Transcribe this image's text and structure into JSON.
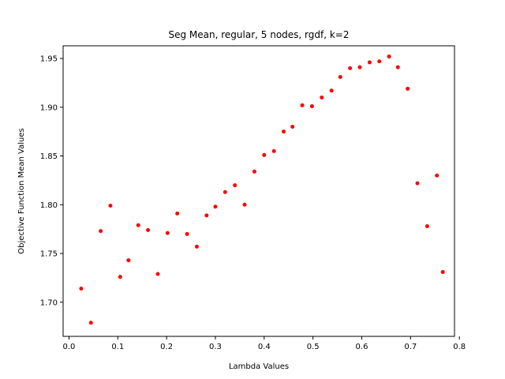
{
  "chart_data": {
    "type": "scatter",
    "title": "Seg Mean, regular, 5 nodes, rgdf, k=2",
    "xlabel": "Lambda Values",
    "ylabel": "Objective Function Mean Values",
    "xlim": [
      -0.012,
      0.79
    ],
    "ylim": [
      1.665,
      1.963
    ],
    "xticks": [
      0.0,
      0.1,
      0.2,
      0.3,
      0.4,
      0.5,
      0.6,
      0.7,
      0.8
    ],
    "xtick_labels": [
      "0.0",
      "0.1",
      "0.2",
      "0.3",
      "0.4",
      "0.5",
      "0.6",
      "0.7",
      "0.8"
    ],
    "yticks": [
      1.7,
      1.75,
      1.8,
      1.85,
      1.9,
      1.95
    ],
    "ytick_labels": [
      "1.70",
      "1.75",
      "1.80",
      "1.85",
      "1.90",
      "1.95"
    ],
    "grid": false,
    "marker_color": "#ff0000",
    "series": [
      {
        "points": [
          [
            0.025,
            1.714
          ],
          [
            0.045,
            1.679
          ],
          [
            0.065,
            1.773
          ],
          [
            0.085,
            1.799
          ],
          [
            0.105,
            1.726
          ],
          [
            0.122,
            1.743
          ],
          [
            0.142,
            1.779
          ],
          [
            0.162,
            1.774
          ],
          [
            0.182,
            1.729
          ],
          [
            0.202,
            1.771
          ],
          [
            0.222,
            1.791
          ],
          [
            0.242,
            1.77
          ],
          [
            0.262,
            1.757
          ],
          [
            0.282,
            1.789
          ],
          [
            0.3,
            1.798
          ],
          [
            0.32,
            1.813
          ],
          [
            0.34,
            1.82
          ],
          [
            0.36,
            1.8
          ],
          [
            0.38,
            1.834
          ],
          [
            0.4,
            1.851
          ],
          [
            0.42,
            1.855
          ],
          [
            0.44,
            1.875
          ],
          [
            0.458,
            1.88
          ],
          [
            0.478,
            1.902
          ],
          [
            0.498,
            1.901
          ],
          [
            0.518,
            1.91
          ],
          [
            0.538,
            1.917
          ],
          [
            0.556,
            1.931
          ],
          [
            0.576,
            1.94
          ],
          [
            0.596,
            1.941
          ],
          [
            0.616,
            1.946
          ],
          [
            0.636,
            1.947
          ],
          [
            0.656,
            1.952
          ],
          [
            0.674,
            1.941
          ],
          [
            0.694,
            1.919
          ],
          [
            0.714,
            1.822
          ],
          [
            0.734,
            1.778
          ],
          [
            0.754,
            1.83
          ],
          [
            0.766,
            1.731
          ]
        ]
      }
    ]
  }
}
